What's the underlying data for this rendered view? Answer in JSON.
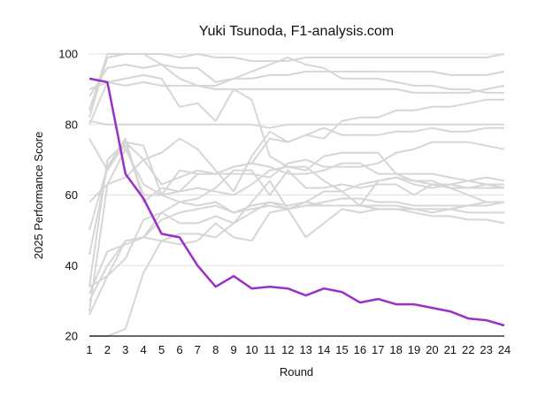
{
  "chart_data": {
    "type": "line",
    "title": "Yuki Tsunoda, F1-analysis.com",
    "xlabel": "Round",
    "ylabel": "2025 Performance Score",
    "x": [
      1,
      2,
      3,
      4,
      5,
      6,
      7,
      8,
      9,
      10,
      11,
      12,
      13,
      14,
      15,
      16,
      17,
      18,
      19,
      20,
      21,
      22,
      23,
      24
    ],
    "xlim": [
      1,
      24
    ],
    "ylim": [
      20,
      100
    ],
    "yticks": [
      20,
      40,
      60,
      80,
      100
    ],
    "grid": "horizontal",
    "legend": "none",
    "highlight_color": "#9b30c8",
    "background_color": "#d6d6d6",
    "series": [
      {
        "highlight": true,
        "values": [
          93,
          92,
          66,
          59,
          49,
          48,
          40,
          34,
          37,
          33.5,
          34,
          33.5,
          31.5,
          33.5,
          32.5,
          29.5,
          30.5,
          29,
          29,
          28,
          27,
          25,
          24.5,
          23
        ]
      },
      {
        "highlight": false,
        "values": [
          84,
          100,
          100,
          100,
          97,
          96,
          96,
          92,
          93,
          93,
          94,
          94,
          95,
          95,
          95,
          95,
          95,
          95,
          95,
          95,
          94,
          94,
          94,
          95
        ]
      },
      {
        "highlight": false,
        "values": [
          82,
          99,
          100,
          100,
          100,
          99,
          100,
          99,
          99,
          98,
          98,
          98,
          99,
          99,
          99,
          99,
          99,
          99,
          99,
          99,
          99,
          99,
          99,
          100
        ]
      },
      {
        "highlight": false,
        "values": [
          88,
          96,
          97,
          96,
          97,
          93,
          91,
          91,
          93,
          95,
          97,
          99,
          97,
          96,
          93,
          93,
          93,
          92,
          91,
          91,
          90,
          90,
          89,
          89
        ]
      },
      {
        "highlight": false,
        "values": [
          80,
          92,
          93,
          94,
          93,
          85,
          86,
          81,
          90,
          87,
          71,
          68,
          67,
          71,
          72,
          72,
          72,
          66,
          64,
          63,
          62,
          60,
          58,
          58
        ]
      },
      {
        "highlight": false,
        "values": [
          90,
          92,
          91,
          92,
          91,
          91,
          91,
          90,
          90,
          90,
          90,
          90,
          90,
          90,
          90,
          90,
          90,
          90,
          89,
          89,
          89,
          89,
          90,
          91
        ]
      },
      {
        "highlight": false,
        "values": [
          81,
          80,
          80,
          80,
          80,
          80,
          80,
          80,
          80,
          80,
          79,
          80,
          80,
          80,
          80,
          80,
          80,
          80,
          80,
          80,
          80,
          80,
          80,
          80
        ]
      },
      {
        "highlight": false,
        "values": [
          76,
          67,
          75,
          70,
          72,
          76,
          73,
          67,
          61,
          71,
          78,
          75,
          77,
          79,
          77,
          77,
          77,
          78,
          78,
          79,
          78,
          78,
          79,
          79
        ]
      },
      {
        "highlight": false,
        "values": [
          58,
          63,
          73,
          63,
          60,
          61,
          62,
          61,
          60,
          63,
          67,
          68,
          68,
          64,
          61,
          57,
          64,
          65,
          64,
          64,
          62,
          62,
          62,
          62
        ]
      },
      {
        "highlight": false,
        "values": [
          50,
          68,
          76,
          58,
          62,
          61,
          66,
          66,
          68,
          69,
          68,
          66,
          66,
          67,
          69,
          69,
          66,
          66,
          66,
          66,
          65,
          64,
          65,
          64
        ]
      },
      {
        "highlight": false,
        "values": [
          43,
          68,
          74,
          60,
          60,
          58,
          59,
          62,
          67,
          67,
          60,
          67,
          62,
          62,
          63,
          62,
          63,
          63,
          60,
          63,
          63,
          62,
          63,
          63
        ]
      },
      {
        "highlight": false,
        "values": [
          34,
          37,
          47,
          48,
          55,
          52,
          52,
          54,
          52,
          55,
          58,
          56,
          57,
          58,
          59,
          59,
          58,
          58,
          57,
          57,
          57,
          57,
          58,
          58
        ]
      },
      {
        "highlight": false,
        "values": [
          32,
          44,
          46,
          48,
          53,
          55,
          56,
          57,
          55,
          56,
          57,
          56,
          57,
          57,
          57,
          57,
          56,
          56,
          56,
          55,
          56,
          55,
          55,
          55
        ]
      },
      {
        "highlight": false,
        "values": [
          30,
          40,
          47,
          48,
          47,
          46,
          47,
          52,
          48,
          47,
          55,
          56,
          48,
          52,
          56,
          55,
          56,
          56,
          55,
          54,
          54,
          53,
          53,
          52
        ]
      },
      {
        "highlight": false,
        "values": [
          26,
          37,
          42,
          53,
          55,
          58,
          57,
          58,
          55,
          57,
          58,
          57,
          58,
          57,
          57,
          57,
          57,
          57,
          56,
          56,
          56,
          57,
          57,
          58
        ]
      },
      {
        "highlight": false,
        "values": [
          20,
          20,
          22,
          38,
          47,
          49,
          49,
          48,
          52,
          58,
          64,
          56,
          58,
          61,
          61,
          63,
          64,
          65,
          63,
          62,
          63,
          64,
          63,
          62
        ]
      },
      {
        "highlight": false,
        "values": [
          34,
          70,
          75,
          74,
          60,
          67,
          66,
          66,
          66,
          66,
          65,
          69,
          70,
          68,
          68,
          68,
          69,
          72,
          73,
          75,
          75,
          75,
          74,
          73
        ]
      },
      {
        "highlight": false,
        "values": [
          27,
          63,
          65,
          70,
          63,
          65,
          67,
          66,
          68,
          69,
          76,
          75,
          77,
          76,
          81,
          82,
          82,
          84,
          84,
          85,
          85,
          86,
          87,
          87
        ]
      }
    ]
  }
}
